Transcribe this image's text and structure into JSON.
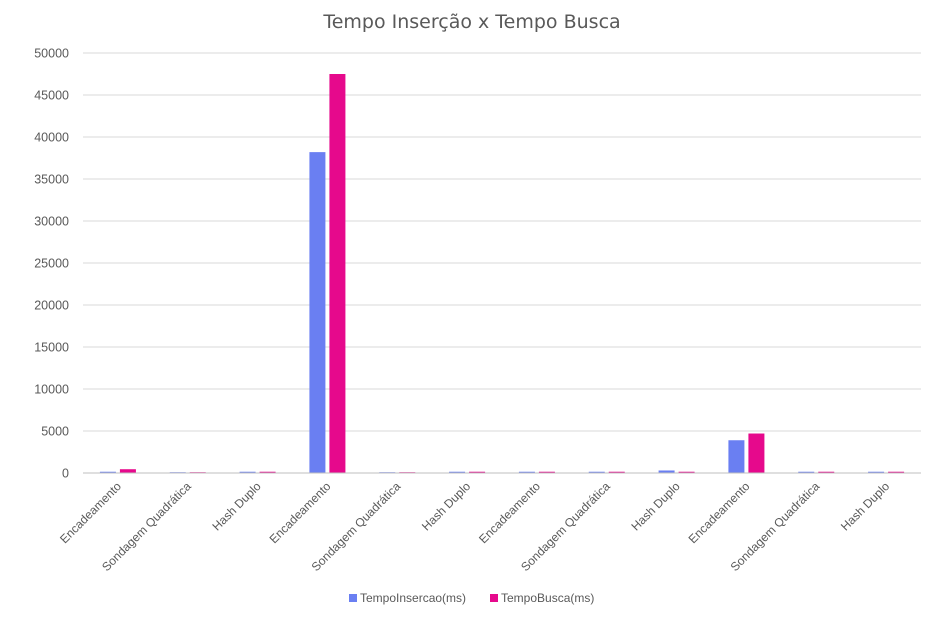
{
  "chart_data": {
    "type": "bar",
    "title": "Tempo Inserção x Tempo Busca",
    "xlabel": "",
    "ylabel": "",
    "ylim": [
      0,
      50000
    ],
    "yticks": [
      "0",
      "5000",
      "10000",
      "15000",
      "20000",
      "25000",
      "30000",
      "35000",
      "40000",
      "45000",
      "50000"
    ],
    "grid": true,
    "legend_position": "bottom",
    "categories": [
      "Encadeamento",
      "Sondagem Quadrática",
      "Hash Duplo",
      "Encadeamento",
      "Sondagem Quadrática",
      "Hash Duplo",
      "Encadeamento",
      "Sondagem Quadrática",
      "Hash Duplo",
      "Encadeamento",
      "Sondagem Quadrática",
      "Hash Duplo"
    ],
    "series": [
      {
        "name": "TempoInsercao(ms)",
        "color": "#6a7ff2",
        "values": [
          150,
          20,
          150,
          38200,
          20,
          150,
          150,
          150,
          300,
          3900,
          150,
          150
        ]
      },
      {
        "name": "TempoBusca(ms)",
        "color": "#e6098c",
        "values": [
          450,
          20,
          150,
          47500,
          20,
          150,
          150,
          150,
          150,
          4700,
          150,
          150
        ]
      }
    ]
  }
}
